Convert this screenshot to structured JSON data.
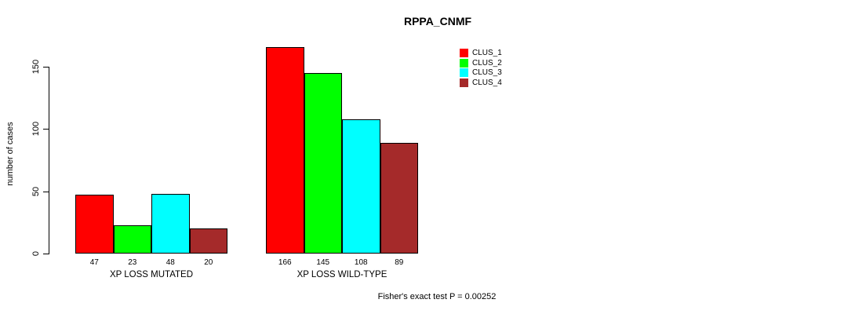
{
  "title": "RPPA_CNMF",
  "y_axis": {
    "label": "number of cases",
    "tick_labels": [
      "0",
      "50",
      "100",
      "150"
    ]
  },
  "footnote": "Fisher's exact test P = 0.00252",
  "legend": {
    "entries": [
      {
        "label": "CLUS_1",
        "color": "#FF0000"
      },
      {
        "label": "CLUS_2",
        "color": "#00FF00"
      },
      {
        "label": "CLUS_3",
        "color": "#00FFFF"
      },
      {
        "label": "CLUS_4",
        "color": "#A52A2A"
      }
    ]
  },
  "chart_data": {
    "type": "bar",
    "title": "RPPA_CNMF",
    "xlabel": "",
    "ylabel": "number of cases",
    "categories": [
      "XP LOSS MUTATED",
      "XP LOSS WILD-TYPE"
    ],
    "series": [
      {
        "name": "CLUS_1",
        "color": "#FF0000",
        "values": [
          47,
          166
        ]
      },
      {
        "name": "CLUS_2",
        "color": "#00FF00",
        "values": [
          23,
          145
        ]
      },
      {
        "name": "CLUS_3",
        "color": "#00FFFF",
        "values": [
          48,
          108
        ]
      },
      {
        "name": "CLUS_4",
        "color": "#A52A2A",
        "values": [
          20,
          89
        ]
      }
    ],
    "bar_value_labels": [
      [
        47,
        23,
        48,
        20
      ],
      [
        166,
        145,
        108,
        89
      ]
    ],
    "yticks": [
      0,
      50,
      100,
      150
    ],
    "ylim": [
      0,
      175
    ],
    "grid": false,
    "legend_position": "top-right",
    "annotation": "Fisher's exact test P = 0.00252",
    "bar_border_color": "#000000",
    "background_color": "#FFFFFF"
  }
}
